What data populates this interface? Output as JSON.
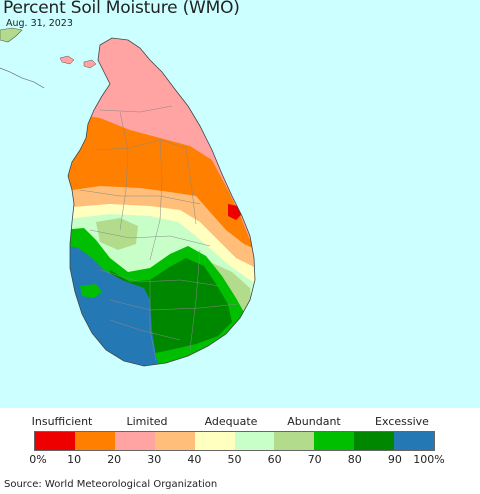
{
  "header": {
    "title": "Percent Soil Moisture (WMO)",
    "date": "Aug. 31, 2023"
  },
  "map": {
    "ocean_color": "#ccffff",
    "land_outline_color": "#555555",
    "district_border_color": "#888888"
  },
  "legend": {
    "categories": [
      {
        "label": "Insufficient"
      },
      {
        "label": "Limited"
      },
      {
        "label": "Adequate"
      },
      {
        "label": "Abundant"
      },
      {
        "label": "Excessive"
      }
    ],
    "colors": [
      "#ee0000",
      "#ff7f00",
      "#ffa3a3",
      "#ffbf7a",
      "#ffffc0",
      "#c8ffc8",
      "#b2dc8c",
      "#00be00",
      "#008700",
      "#2479b4"
    ],
    "ticks": [
      "0%",
      "10",
      "20",
      "30",
      "40",
      "50",
      "60",
      "70",
      "80",
      "90",
      "100%"
    ]
  },
  "footer": {
    "source": "Source: World Meteorological Organization"
  }
}
